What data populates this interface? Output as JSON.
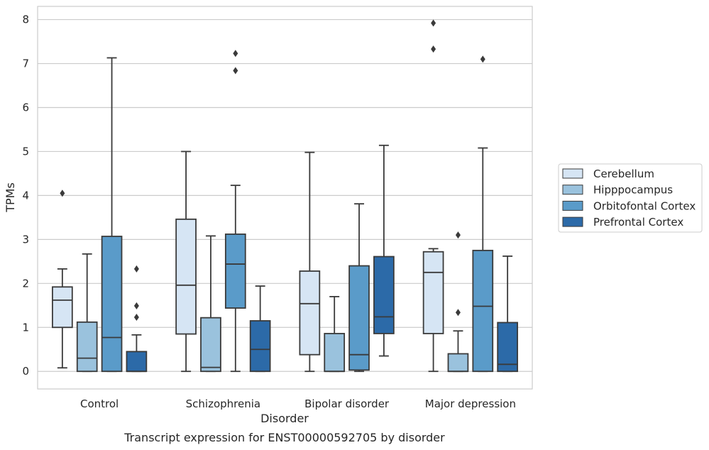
{
  "chart_data": {
    "type": "box",
    "caption": "Transcript expression for ENST00000592705 by disorder",
    "xlabel": "Disorder",
    "ylabel": "TPMs",
    "ylim": [
      -0.4,
      8.3
    ],
    "yticks": [
      0,
      1,
      2,
      3,
      4,
      5,
      6,
      7,
      8
    ],
    "grid": "horizontal",
    "legend_placement": "center-right",
    "categories": [
      "Control",
      "Schizophrenia",
      "Bipolar disorder",
      "Major depression"
    ],
    "series": [
      {
        "name": "Cerebellum",
        "color": "#d6e5f4",
        "boxes": [
          {
            "whislo": 0.08,
            "q1": 1.0,
            "med": 1.62,
            "q3": 1.92,
            "whishi": 2.33,
            "fliers": [
              4.05
            ]
          },
          {
            "whislo": 0.0,
            "q1": 0.85,
            "med": 1.96,
            "q3": 3.46,
            "whishi": 5.0,
            "fliers": []
          },
          {
            "whislo": 0.0,
            "q1": 0.38,
            "med": 1.54,
            "q3": 2.28,
            "whishi": 4.98,
            "fliers": []
          },
          {
            "whislo": 0.0,
            "q1": 0.86,
            "med": 2.25,
            "q3": 2.72,
            "whishi": 2.79,
            "fliers": [
              7.33,
              7.92
            ]
          }
        ]
      },
      {
        "name": "Hipppocampus",
        "color": "#9ac2dd",
        "boxes": [
          {
            "whislo": 0.0,
            "q1": 0.0,
            "med": 0.3,
            "q3": 1.12,
            "whishi": 2.67,
            "fliers": []
          },
          {
            "whislo": 0.0,
            "q1": 0.0,
            "med": 0.09,
            "q3": 1.22,
            "whishi": 3.08,
            "fliers": []
          },
          {
            "whislo": 0.0,
            "q1": 0.0,
            "med": 0.0,
            "q3": 0.86,
            "whishi": 1.7,
            "fliers": []
          },
          {
            "whislo": 0.0,
            "q1": 0.0,
            "med": 0.0,
            "q3": 0.4,
            "whishi": 0.92,
            "fliers": [
              1.34,
              3.1
            ]
          }
        ]
      },
      {
        "name": "Orbitofontal Cortex",
        "color": "#5a9bc9",
        "boxes": [
          {
            "whislo": 0.0,
            "q1": 0.0,
            "med": 0.77,
            "q3": 3.07,
            "whishi": 7.13,
            "fliers": []
          },
          {
            "whislo": 0.0,
            "q1": 1.44,
            "med": 2.44,
            "q3": 3.12,
            "whishi": 4.23,
            "fliers": [
              6.84,
              7.23
            ]
          },
          {
            "whislo": 0.0,
            "q1": 0.03,
            "med": 0.38,
            "q3": 2.4,
            "whishi": 3.81,
            "fliers": []
          },
          {
            "whislo": 0.0,
            "q1": 0.0,
            "med": 1.48,
            "q3": 2.75,
            "whishi": 5.08,
            "fliers": [
              7.1
            ]
          }
        ]
      },
      {
        "name": "Prefrontal Cortex",
        "color": "#2c6aa8",
        "boxes": [
          {
            "whislo": 0.0,
            "q1": 0.0,
            "med": 0.0,
            "q3": 0.45,
            "whishi": 0.83,
            "fliers": [
              1.23,
              1.49,
              2.33
            ]
          },
          {
            "whislo": 0.0,
            "q1": 0.0,
            "med": 0.5,
            "q3": 1.15,
            "whishi": 1.94,
            "fliers": []
          },
          {
            "whislo": 0.35,
            "q1": 0.86,
            "med": 1.24,
            "q3": 2.61,
            "whishi": 5.14,
            "fliers": []
          },
          {
            "whislo": 0.0,
            "q1": 0.0,
            "med": 0.16,
            "q3": 1.11,
            "whishi": 2.62,
            "fliers": []
          }
        ]
      }
    ]
  }
}
